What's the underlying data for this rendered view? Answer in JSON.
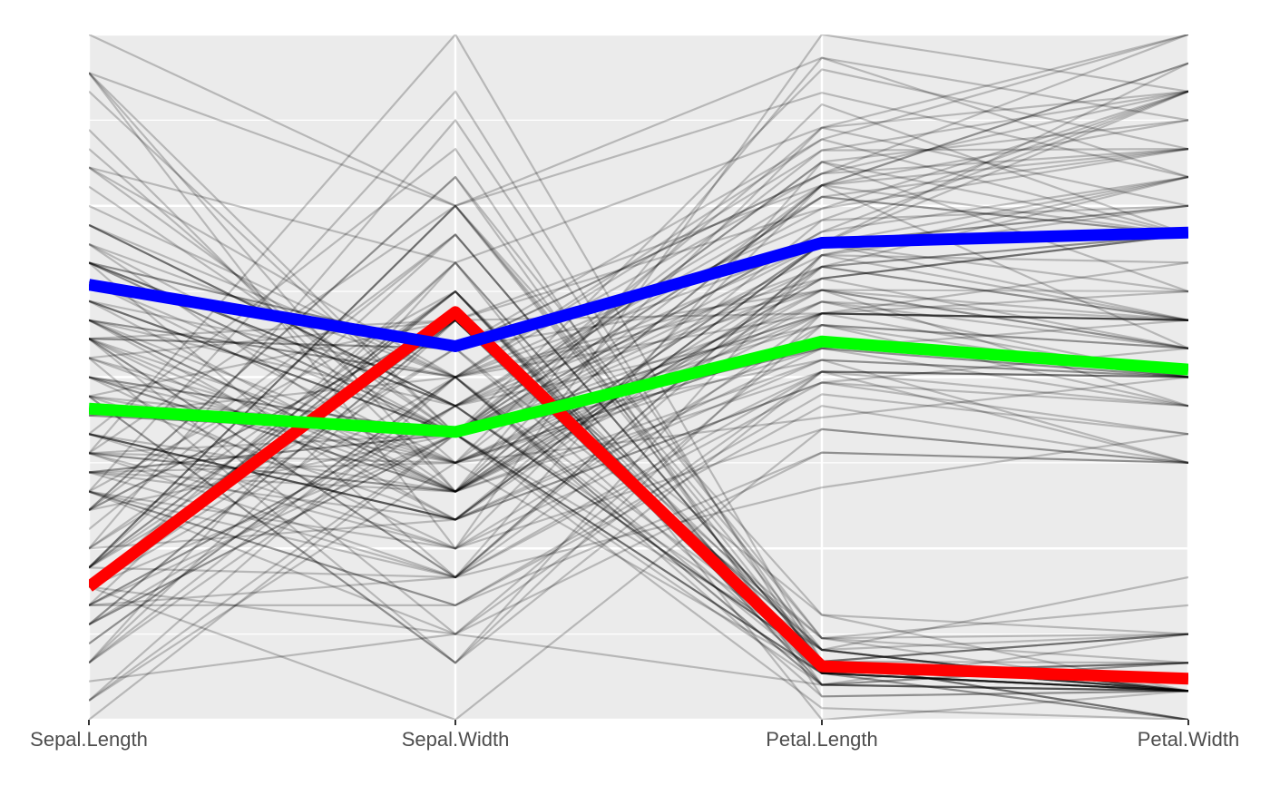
{
  "chart_data": {
    "type": "line",
    "subtype": "parallel-coordinates",
    "axes": [
      "Sepal.Length",
      "Sepal.Width",
      "Petal.Length",
      "Petal.Width"
    ],
    "scaling": "each axis min-max scaled 0-1 (no numeric tick labels shown)",
    "ylim": [
      0,
      1
    ],
    "panel_background": "#ebebeb",
    "grid": true,
    "legend": "none",
    "background_line_color": "#000000",
    "background_line_opacity": 0.22,
    "background_lines": [
      [
        0.222,
        0.625,
        0.068,
        0.042
      ],
      [
        0.167,
        0.417,
        0.068,
        0.042
      ],
      [
        0.111,
        0.5,
        0.051,
        0.042
      ],
      [
        0.083,
        0.458,
        0.085,
        0.042
      ],
      [
        0.194,
        0.667,
        0.068,
        0.042
      ],
      [
        0.306,
        0.792,
        0.119,
        0.125
      ],
      [
        0.083,
        0.583,
        0.068,
        0.083
      ],
      [
        0.194,
        0.583,
        0.085,
        0.042
      ],
      [
        0.028,
        0.375,
        0.068,
        0.042
      ],
      [
        0.167,
        0.458,
        0.085,
        0.0
      ],
      [
        0.306,
        0.708,
        0.085,
        0.042
      ],
      [
        0.139,
        0.583,
        0.102,
        0.042
      ],
      [
        0.139,
        0.417,
        0.068,
        0.0
      ],
      [
        0.0,
        0.417,
        0.017,
        0.0
      ],
      [
        0.417,
        0.833,
        0.034,
        0.042
      ],
      [
        0.389,
        1.0,
        0.085,
        0.125
      ],
      [
        0.306,
        0.792,
        0.051,
        0.125
      ],
      [
        0.222,
        0.625,
        0.068,
        0.083
      ],
      [
        0.389,
        0.75,
        0.119,
        0.083
      ],
      [
        0.222,
        0.75,
        0.085,
        0.083
      ],
      [
        0.306,
        0.583,
        0.119,
        0.042
      ],
      [
        0.222,
        0.708,
        0.085,
        0.125
      ],
      [
        0.083,
        0.667,
        0.0,
        0.042
      ],
      [
        0.222,
        0.542,
        0.119,
        0.167
      ],
      [
        0.139,
        0.583,
        0.153,
        0.042
      ],
      [
        0.194,
        0.417,
        0.102,
        0.042
      ],
      [
        0.194,
        0.583,
        0.102,
        0.125
      ],
      [
        0.25,
        0.625,
        0.085,
        0.042
      ],
      [
        0.25,
        0.583,
        0.068,
        0.042
      ],
      [
        0.111,
        0.5,
        0.102,
        0.042
      ],
      [
        0.139,
        0.458,
        0.102,
        0.042
      ],
      [
        0.306,
        0.583,
        0.085,
        0.125
      ],
      [
        0.25,
        0.875,
        0.085,
        0.0
      ],
      [
        0.333,
        0.917,
        0.068,
        0.042
      ],
      [
        0.167,
        0.458,
        0.085,
        0.0
      ],
      [
        0.194,
        0.5,
        0.034,
        0.042
      ],
      [
        0.333,
        0.625,
        0.051,
        0.042
      ],
      [
        0.167,
        0.667,
        0.068,
        0.0
      ],
      [
        0.028,
        0.417,
        0.051,
        0.042
      ],
      [
        0.222,
        0.583,
        0.085,
        0.042
      ],
      [
        0.194,
        0.625,
        0.051,
        0.083
      ],
      [
        0.056,
        0.125,
        0.051,
        0.083
      ],
      [
        0.028,
        0.5,
        0.051,
        0.042
      ],
      [
        0.194,
        0.625,
        0.102,
        0.208
      ],
      [
        0.222,
        0.75,
        0.153,
        0.125
      ],
      [
        0.139,
        0.417,
        0.068,
        0.083
      ],
      [
        0.222,
        0.75,
        0.102,
        0.042
      ],
      [
        0.083,
        0.5,
        0.068,
        0.042
      ],
      [
        0.278,
        0.708,
        0.085,
        0.042
      ],
      [
        0.194,
        0.542,
        0.068,
        0.042
      ],
      [
        0.75,
        0.5,
        0.627,
        0.542
      ],
      [
        0.583,
        0.5,
        0.593,
        0.583
      ],
      [
        0.722,
        0.458,
        0.661,
        0.583
      ],
      [
        0.333,
        0.125,
        0.508,
        0.5
      ],
      [
        0.611,
        0.333,
        0.61,
        0.583
      ],
      [
        0.389,
        0.333,
        0.593,
        0.5
      ],
      [
        0.556,
        0.542,
        0.627,
        0.625
      ],
      [
        0.167,
        0.167,
        0.39,
        0.375
      ],
      [
        0.639,
        0.375,
        0.61,
        0.5
      ],
      [
        0.25,
        0.292,
        0.492,
        0.542
      ],
      [
        0.194,
        0.0,
        0.424,
        0.375
      ],
      [
        0.444,
        0.417,
        0.542,
        0.583
      ],
      [
        0.472,
        0.083,
        0.508,
        0.375
      ],
      [
        0.5,
        0.375,
        0.627,
        0.542
      ],
      [
        0.361,
        0.375,
        0.441,
        0.5
      ],
      [
        0.667,
        0.458,
        0.576,
        0.542
      ],
      [
        0.361,
        0.417,
        0.593,
        0.583
      ],
      [
        0.417,
        0.292,
        0.525,
        0.375
      ],
      [
        0.528,
        0.083,
        0.593,
        0.583
      ],
      [
        0.361,
        0.208,
        0.492,
        0.417
      ],
      [
        0.444,
        0.5,
        0.644,
        0.708
      ],
      [
        0.5,
        0.333,
        0.508,
        0.5
      ],
      [
        0.556,
        0.208,
        0.661,
        0.583
      ],
      [
        0.5,
        0.333,
        0.627,
        0.458
      ],
      [
        0.583,
        0.375,
        0.559,
        0.5
      ],
      [
        0.639,
        0.417,
        0.576,
        0.542
      ],
      [
        0.694,
        0.333,
        0.644,
        0.542
      ],
      [
        0.667,
        0.417,
        0.678,
        0.667
      ],
      [
        0.472,
        0.375,
        0.593,
        0.583
      ],
      [
        0.389,
        0.25,
        0.424,
        0.375
      ],
      [
        0.333,
        0.167,
        0.475,
        0.417
      ],
      [
        0.333,
        0.167,
        0.458,
        0.375
      ],
      [
        0.417,
        0.292,
        0.492,
        0.458
      ],
      [
        0.472,
        0.292,
        0.695,
        0.625
      ],
      [
        0.306,
        0.417,
        0.593,
        0.583
      ],
      [
        0.472,
        0.583,
        0.593,
        0.625
      ],
      [
        0.667,
        0.458,
        0.627,
        0.583
      ],
      [
        0.556,
        0.125,
        0.576,
        0.5
      ],
      [
        0.361,
        0.417,
        0.525,
        0.5
      ],
      [
        0.333,
        0.208,
        0.508,
        0.5
      ],
      [
        0.333,
        0.25,
        0.576,
        0.458
      ],
      [
        0.5,
        0.417,
        0.61,
        0.542
      ],
      [
        0.417,
        0.25,
        0.508,
        0.458
      ],
      [
        0.194,
        0.125,
        0.39,
        0.375
      ],
      [
        0.361,
        0.292,
        0.542,
        0.5
      ],
      [
        0.389,
        0.417,
        0.542,
        0.458
      ],
      [
        0.389,
        0.375,
        0.542,
        0.5
      ],
      [
        0.528,
        0.375,
        0.559,
        0.5
      ],
      [
        0.222,
        0.208,
        0.339,
        0.417
      ],
      [
        0.389,
        0.333,
        0.525,
        0.5
      ],
      [
        0.556,
        0.542,
        0.847,
        1.0
      ],
      [
        0.417,
        0.292,
        0.695,
        0.75
      ],
      [
        0.778,
        0.417,
        0.831,
        0.833
      ],
      [
        0.556,
        0.375,
        0.78,
        0.708
      ],
      [
        0.611,
        0.417,
        0.814,
        0.875
      ],
      [
        0.917,
        0.417,
        0.949,
        0.833
      ],
      [
        0.167,
        0.208,
        0.593,
        0.667
      ],
      [
        0.833,
        0.375,
        0.898,
        0.708
      ],
      [
        0.667,
        0.208,
        0.814,
        0.708
      ],
      [
        0.806,
        0.667,
        0.864,
        1.0
      ],
      [
        0.611,
        0.5,
        0.695,
        0.792
      ],
      [
        0.583,
        0.292,
        0.729,
        0.75
      ],
      [
        0.694,
        0.417,
        0.763,
        0.833
      ],
      [
        0.389,
        0.208,
        0.678,
        0.792
      ],
      [
        0.417,
        0.333,
        0.695,
        0.958
      ],
      [
        0.583,
        0.5,
        0.729,
        0.917
      ],
      [
        0.611,
        0.417,
        0.763,
        0.708
      ],
      [
        0.944,
        0.75,
        0.966,
        0.875
      ],
      [
        0.944,
        0.25,
        1.0,
        0.917
      ],
      [
        0.472,
        0.083,
        0.678,
        0.583
      ],
      [
        0.722,
        0.5,
        0.797,
        0.917
      ],
      [
        0.361,
        0.333,
        0.661,
        0.792
      ],
      [
        0.944,
        0.333,
        0.966,
        0.792
      ],
      [
        0.556,
        0.292,
        0.661,
        0.708
      ],
      [
        0.667,
        0.542,
        0.797,
        0.833
      ],
      [
        0.806,
        0.5,
        0.847,
        0.708
      ],
      [
        0.528,
        0.333,
        0.644,
        0.708
      ],
      [
        0.5,
        0.417,
        0.661,
        0.708
      ],
      [
        0.583,
        0.333,
        0.78,
        0.833
      ],
      [
        0.806,
        0.417,
        0.814,
        0.625
      ],
      [
        0.861,
        0.333,
        0.864,
        0.75
      ],
      [
        1.0,
        0.75,
        0.915,
        0.792
      ],
      [
        0.583,
        0.333,
        0.78,
        0.875
      ],
      [
        0.556,
        0.333,
        0.695,
        0.583
      ],
      [
        0.5,
        0.25,
        0.78,
        0.542
      ],
      [
        0.944,
        0.417,
        0.864,
        0.917
      ],
      [
        0.556,
        0.583,
        0.78,
        0.958
      ],
      [
        0.583,
        0.458,
        0.763,
        0.708
      ],
      [
        0.472,
        0.417,
        0.644,
        0.708
      ],
      [
        0.722,
        0.458,
        0.746,
        0.833
      ],
      [
        0.667,
        0.458,
        0.78,
        0.958
      ],
      [
        0.722,
        0.458,
        0.695,
        0.917
      ],
      [
        0.417,
        0.292,
        0.695,
        0.75
      ],
      [
        0.694,
        0.5,
        0.831,
        0.917
      ],
      [
        0.667,
        0.542,
        0.797,
        1.0
      ],
      [
        0.667,
        0.417,
        0.712,
        0.917
      ],
      [
        0.556,
        0.208,
        0.678,
        0.75
      ],
      [
        0.611,
        0.417,
        0.712,
        0.792
      ],
      [
        0.528,
        0.583,
        0.746,
        0.917
      ],
      [
        0.444,
        0.417,
        0.695,
        0.708
      ]
    ],
    "series": [
      {
        "color": "#ff0000",
        "values": [
          0.194,
          0.595,
          0.078,
          0.06
        ]
      },
      {
        "color": "#00ff00",
        "values": [
          0.454,
          0.42,
          0.552,
          0.511
        ]
      },
      {
        "color": "#0000ff",
        "values": [
          0.635,
          0.545,
          0.696,
          0.711
        ]
      }
    ]
  }
}
